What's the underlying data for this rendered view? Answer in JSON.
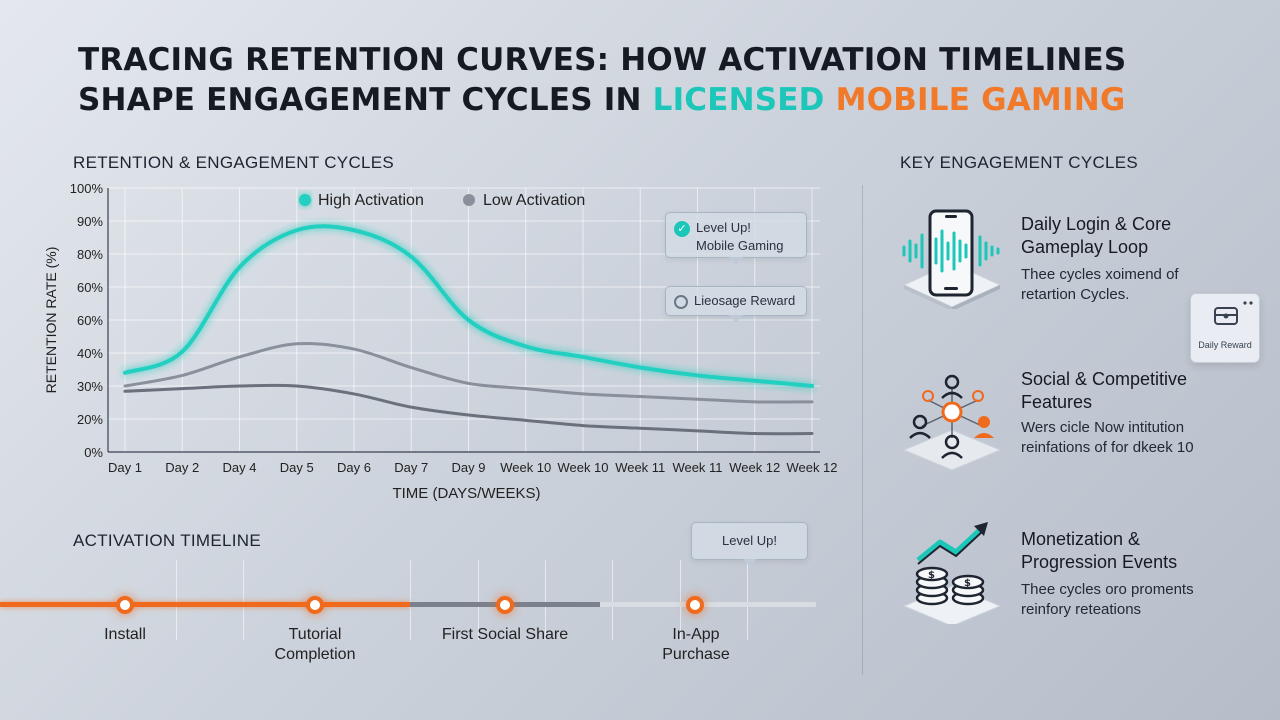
{
  "title": {
    "line1": "TRACING RETENTION CURVES: HOW ACTIVATION TIMELINES",
    "line2_prefix": "SHAPE ENGAGEMENT CYCLES IN ",
    "line2_teal": "LICENSED",
    "line2_orange": "MOBILE GAMING"
  },
  "retention_section_label": "RETENTION & ENGAGEMENT CYCLES",
  "timeline_section_label": "ACTIVATION TIMELINE",
  "key_section_label": "KEY ENGAGEMENT CYCLES",
  "colors": {
    "high": "#22cfc0",
    "low": "#8a909b",
    "baseline": "#6b717c",
    "orange": "#f06a1e"
  },
  "chart_data": {
    "type": "line",
    "title": "RETENTION & ENGAGEMENT CYCLES",
    "xlabel": "TIME (DAYS/WEEKS)",
    "ylabel": "RETENTION RATE (%)",
    "categories": [
      "Day 1",
      "Day 2",
      "Day 4",
      "Day 5",
      "Day 6",
      "Day 7",
      "Day 9",
      "Week 10",
      "Week 10",
      "Week 11",
      "Week 11",
      "Week 12",
      "Week 12"
    ],
    "yticks": [
      "0%",
      "20%",
      "30%",
      "40%",
      "60%",
      "60%",
      "80%",
      "90%",
      "100%"
    ],
    "ylim": [
      0,
      100
    ],
    "grid": true,
    "legend_position": "top",
    "series": [
      {
        "name": "High Activation",
        "values": [
          30,
          38,
          70,
          84,
          84,
          74,
          50,
          40,
          36,
          32,
          29,
          27,
          25
        ]
      },
      {
        "name": "Low Activation",
        "values": [
          25,
          29,
          36,
          41,
          39,
          32,
          26,
          24,
          22,
          21,
          20,
          19,
          19
        ]
      },
      {
        "name": "",
        "values": [
          23,
          24,
          25,
          25,
          22,
          17,
          14,
          12,
          10,
          9,
          8,
          7,
          7
        ]
      }
    ],
    "annotations": [
      {
        "text_line1": "Level Up!",
        "text_line2": "Mobile Gaming"
      },
      {
        "text": "Lieosage Reward"
      }
    ]
  },
  "timeline": {
    "callout": "Level Up!",
    "stages": [
      {
        "label_line1": "Install",
        "label_line2": ""
      },
      {
        "label_line1": "Tutorial",
        "label_line2": "Completion"
      },
      {
        "label_line1": "First Social Share",
        "label_line2": ""
      },
      {
        "label_line1": "In-App",
        "label_line2": "Purchase"
      }
    ]
  },
  "cycles": [
    {
      "title_line1": "Daily Login & Core",
      "title_line2": "Gameplay Loop",
      "desc_line1": "Thee cycles xoimend of",
      "desc_line2": "retartion Cycles.",
      "icon": "phone-icon"
    },
    {
      "title_line1": "Social & Competitive",
      "title_line2": "Features",
      "desc_line1": "Wers cicle Now intitution",
      "desc_line2": "reinfations of for dkeek 10",
      "icon": "network-icon"
    },
    {
      "title_line1": "Monetization &",
      "title_line2": "Progression Events",
      "desc_line1": "Thee cycles oro proments",
      "desc_line2": "reinfory reteations",
      "icon": "coins-arrow-icon"
    }
  ],
  "reward_card": {
    "label": "Daily Reward"
  }
}
